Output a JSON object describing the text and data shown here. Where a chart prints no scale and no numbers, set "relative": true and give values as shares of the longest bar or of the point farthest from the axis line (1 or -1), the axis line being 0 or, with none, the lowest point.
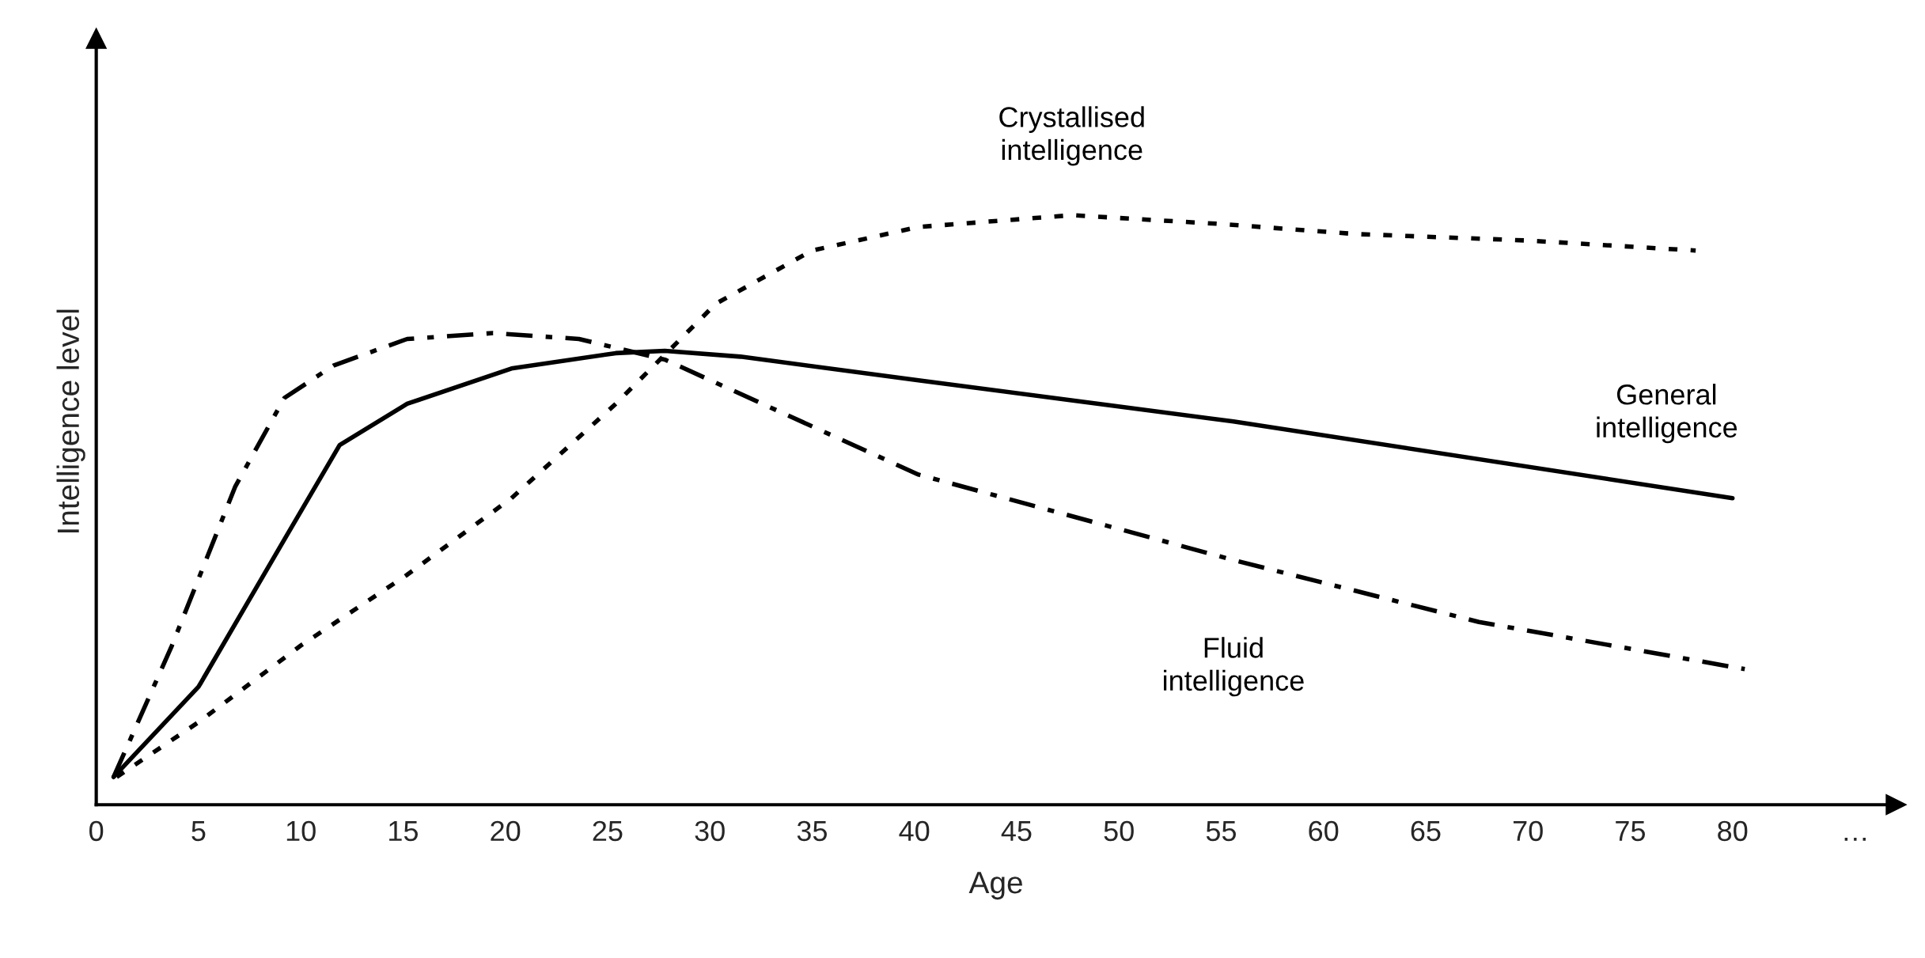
{
  "chart_data": {
    "type": "line",
    "xlabel": "Age",
    "ylabel": "Intelligence level",
    "relative": true,
    "xlim": [
      0,
      88
    ],
    "xticks": [
      0,
      5,
      10,
      15,
      20,
      25,
      30,
      35,
      40,
      45,
      50,
      55,
      60,
      65,
      70,
      75,
      80,
      {
        "value": 86,
        "label": "…"
      }
    ],
    "grid": false,
    "legend": false,
    "marker": "none",
    "series": [
      {
        "name": "Crystallised intelligence",
        "color": "#000000",
        "line_style": "dotted",
        "x": [
          1,
          5,
          10,
          15.2,
          20.3,
          25.4,
          30.3,
          35,
          40.2,
          47.7,
          55,
          61.6,
          70,
          78.2
        ],
        "values": [
          0.047,
          0.14,
          0.27,
          0.39,
          0.52,
          0.68,
          0.85,
          0.94,
          0.98,
          1.0,
          0.985,
          0.968,
          0.957,
          0.94
        ]
      },
      {
        "name": "General intelligence",
        "color": "#000000",
        "line_style": "solid",
        "x": [
          0.85,
          5,
          9.2,
          11.9,
          15.2,
          20.3,
          25.4,
          27.8,
          31.5,
          40.2,
          55.6,
          80
        ],
        "values": [
          0.047,
          0.2,
          0.45,
          0.61,
          0.68,
          0.74,
          0.766,
          0.77,
          0.76,
          0.72,
          0.65,
          0.52
        ]
      },
      {
        "name": "Fluid intelligence",
        "color": "#000000",
        "line_style": "dashdot",
        "x": [
          0.85,
          3.7,
          6.8,
          9.2,
          11.6,
          15.2,
          19.4,
          23.6,
          27.8,
          40.2,
          55.6,
          67.6,
          80.6
        ],
        "values": [
          0.047,
          0.27,
          0.54,
          0.69,
          0.745,
          0.79,
          0.8,
          0.79,
          0.755,
          0.56,
          0.415,
          0.31,
          0.23
        ]
      }
    ]
  }
}
